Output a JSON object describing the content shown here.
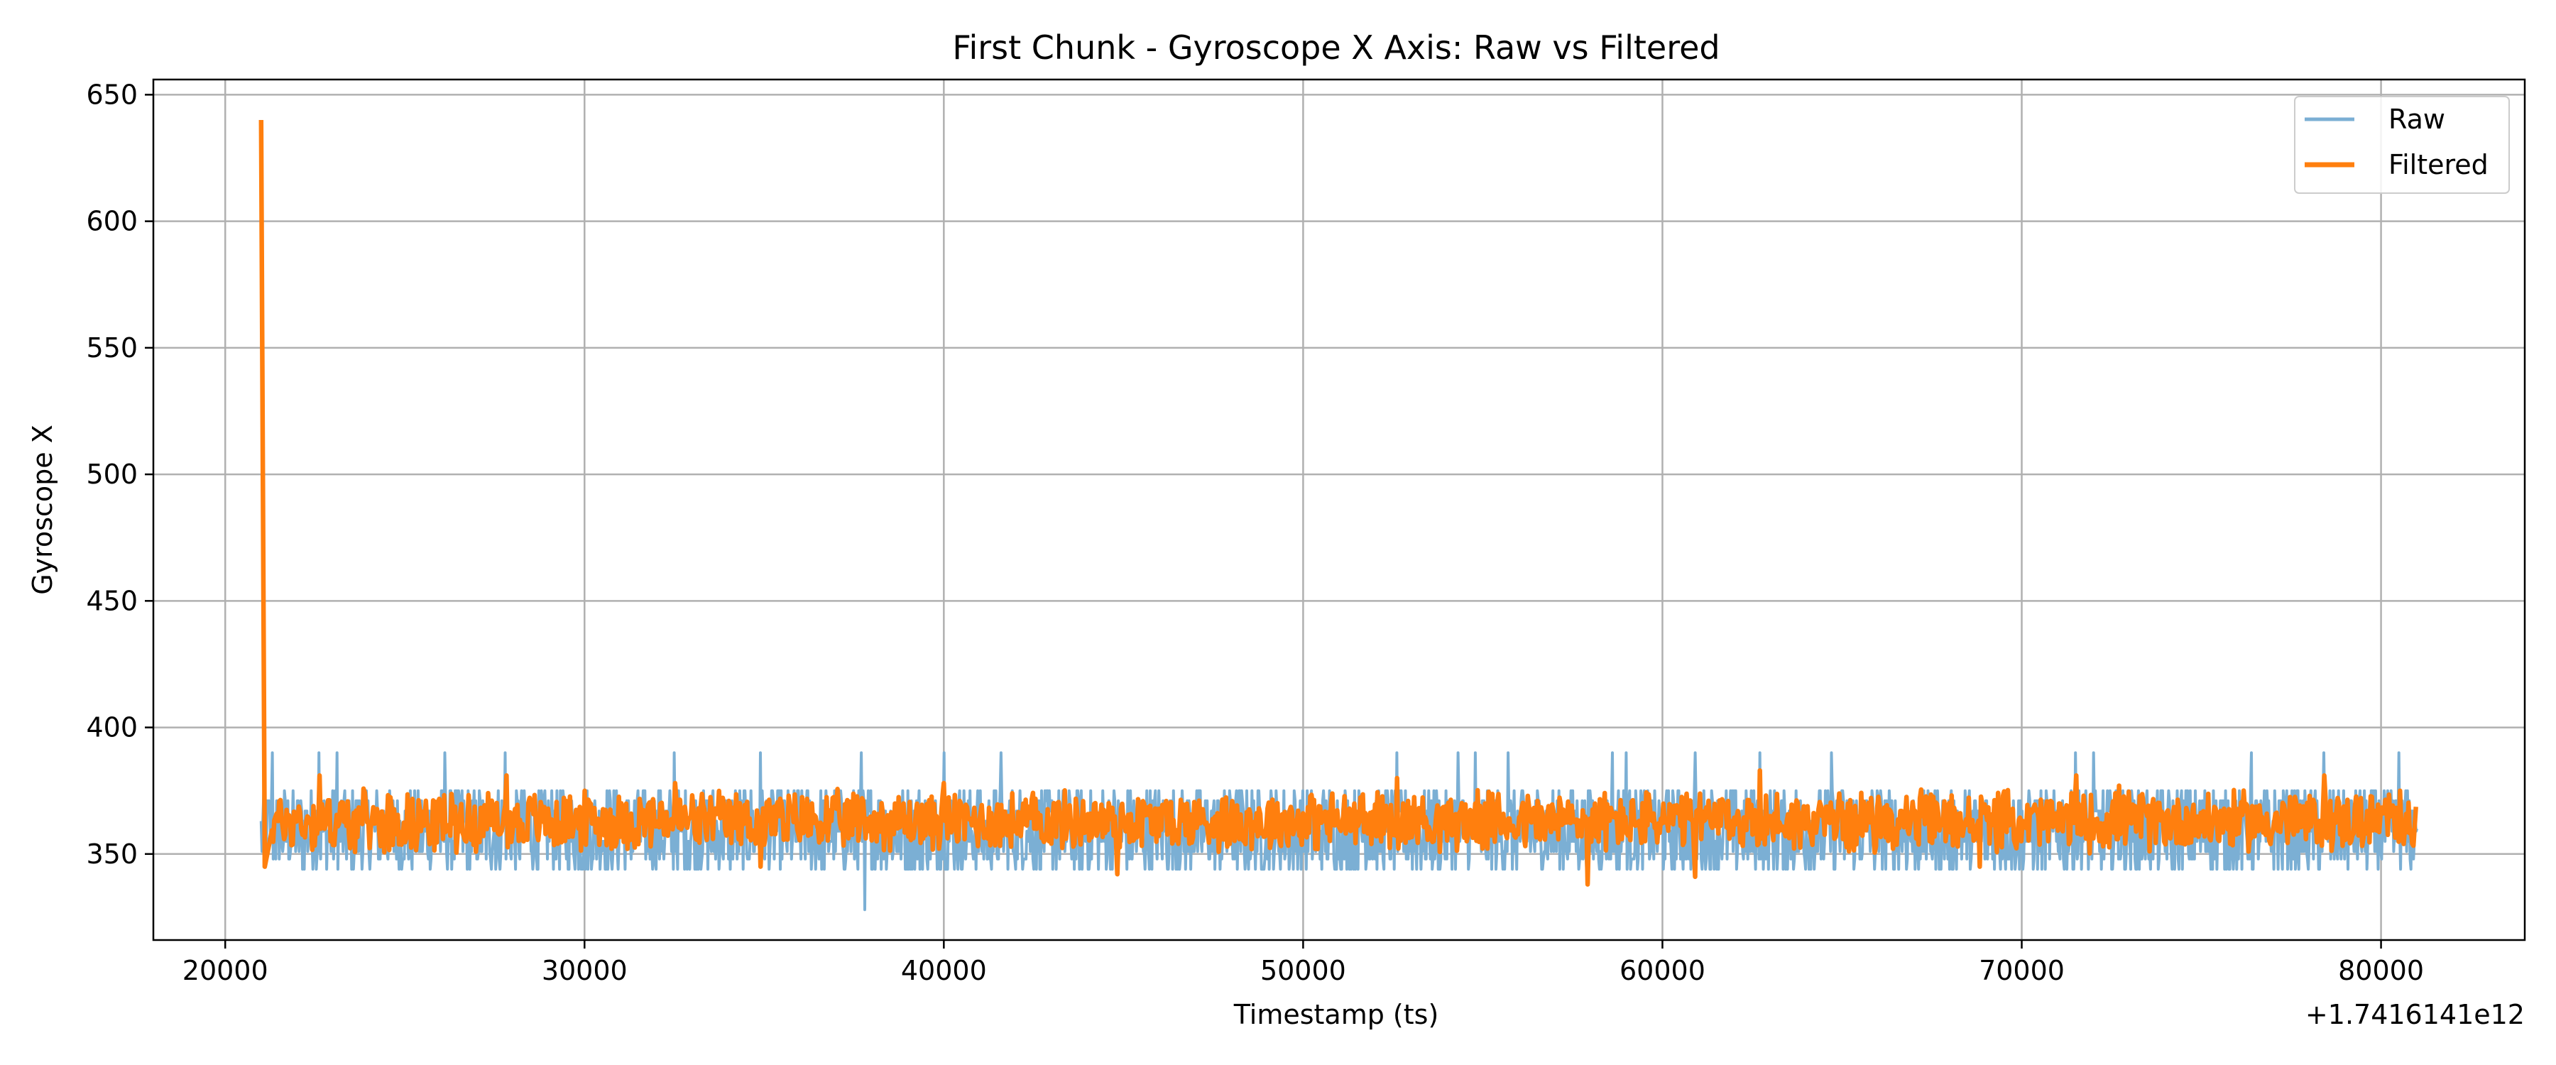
{
  "chart_data": {
    "type": "line",
    "title": "First Chunk - Gyroscope X Axis: Raw vs Filtered",
    "xlabel": "Timestamp (ts)",
    "ylabel": "Gyroscope X",
    "x_offset_label": "+1.7416141e12",
    "xlim": [
      18000,
      84000
    ],
    "ylim": [
      316,
      656
    ],
    "x_ticks": [
      20000,
      30000,
      40000,
      50000,
      60000,
      70000,
      80000
    ],
    "y_ticks": [
      350,
      400,
      450,
      500,
      550,
      600,
      650
    ],
    "grid": true,
    "legend_position": "top-right",
    "series": [
      {
        "name": "Raw",
        "color": "#7bafd4",
        "x": [
          21000,
          21300,
          22600,
          23100,
          26100,
          27800,
          32500,
          34900,
          37700,
          37800,
          40000,
          41600,
          52600,
          54300,
          54800,
          55700,
          58600,
          59000,
          60900,
          62700,
          64700,
          71500,
          72000,
          76400,
          78400,
          80500,
          81000
        ],
        "values": [
          355,
          390,
          390,
          390,
          390,
          390,
          390,
          390,
          390,
          328,
          390,
          390,
          390,
          390,
          390,
          390,
          390,
          390,
          390,
          390,
          390,
          390,
          390,
          390,
          390,
          390,
          360
        ],
        "band": [
          344,
          375
        ]
      },
      {
        "name": "Filtered",
        "color": "#ff7f0e",
        "x": [
          21000,
          21100,
          21300,
          22600,
          27800,
          32500,
          34900,
          37700,
          40000,
          44800,
          52600,
          54900,
          57900,
          60900,
          62700,
          68800,
          71500,
          72700,
          78400,
          80500,
          81000
        ],
        "values": [
          640,
          345,
          368,
          381,
          381,
          378,
          345,
          372,
          378,
          342,
          380,
          369,
          338,
          341,
          383,
          345,
          381,
          377,
          381,
          375,
          363
        ],
        "band": [
          350,
          376
        ]
      }
    ]
  }
}
